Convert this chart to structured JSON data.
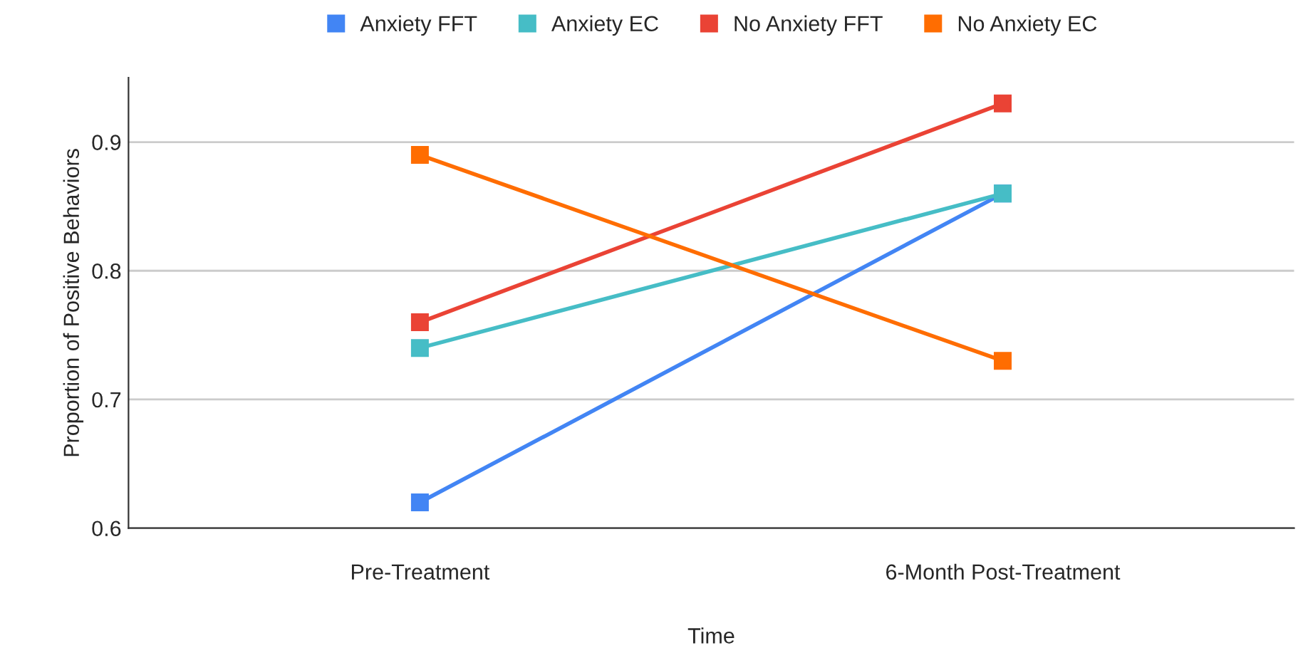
{
  "chart_data": {
    "type": "line",
    "xlabel": "Time",
    "ylabel": "Proportion of Positive Behaviors",
    "categories": [
      "Pre-Treatment",
      "6-Month Post-Treatment"
    ],
    "series": [
      {
        "name": "Anxiety FFT",
        "color": "#4285f4",
        "values": [
          0.62,
          0.86
        ]
      },
      {
        "name": "Anxiety EC",
        "color": "#46bdc6",
        "values": [
          0.74,
          0.86
        ]
      },
      {
        "name": "No Anxiety FFT",
        "color": "#ea4335",
        "values": [
          0.76,
          0.93
        ]
      },
      {
        "name": "No Anxiety EC",
        "color": "#ff6d01",
        "values": [
          0.89,
          0.73
        ]
      }
    ],
    "ylim": [
      0.6,
      0.95
    ],
    "yticks": [
      0.6,
      0.7,
      0.8,
      0.9
    ],
    "grid": "y",
    "legend": "top",
    "marker": "square",
    "line_style": "solid"
  }
}
